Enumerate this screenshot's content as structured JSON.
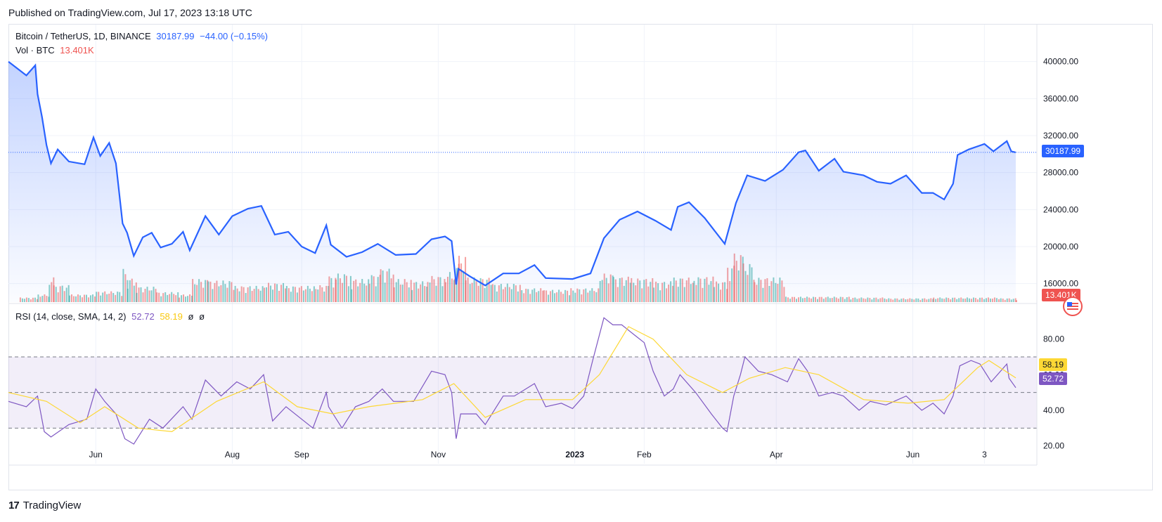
{
  "header": {
    "published": "Published on TradingView.com, Jul 17, 2023 13:18 UTC"
  },
  "legend": {
    "symbol": "Bitcoin / TetherUS, 1D, BINANCE",
    "last": "30187.99",
    "change": "−44.00 (−0.15%)",
    "vol_label": "Vol · BTC",
    "vol_value": "13.401K",
    "rsi_label": "RSI (14, close, SMA, 14, 2)",
    "rsi_value": "52.72",
    "rsi_ma_value": "58.19",
    "rsi_extra1": "ø",
    "rsi_extra2": "ø"
  },
  "badges": {
    "price": "30187.99",
    "volume": "13.401K",
    "rsi_ma": "58.19",
    "rsi": "52.72"
  },
  "footer": {
    "brand": "TradingView",
    "logo": "17"
  },
  "colors": {
    "line": "#2962ff",
    "vol_up": "#26a69a",
    "vol_down": "#ef5350",
    "rsi": "#7e57c2",
    "rsi_ma": "#fdd835"
  },
  "chart_data": {
    "type": "line",
    "price_axis": {
      "ticks": [
        16000,
        20000,
        24000,
        28000,
        32000,
        36000,
        40000
      ],
      "tick_labels": [
        "16000.00",
        "20000.00",
        "24000.00",
        "28000.00",
        "32000.00",
        "36000.00",
        "40000.00"
      ],
      "range": [
        14000,
        44000
      ]
    },
    "rsi_axis": {
      "ticks": [
        20,
        40,
        60,
        80
      ],
      "tick_labels": [
        "20.00",
        "40.00",
        "60.00",
        "80.00"
      ],
      "range": [
        10,
        100
      ],
      "bands": [
        30,
        50,
        70
      ]
    },
    "x_axis_labels": [
      {
        "label": "Jun",
        "date": "2022-06-01"
      },
      {
        "label": "Aug",
        "date": "2022-08-01"
      },
      {
        "label": "Sep",
        "date": "2022-09-01"
      },
      {
        "label": "Nov",
        "date": "2022-11-01"
      },
      {
        "label": "2023",
        "date": "2023-01-01"
      },
      {
        "label": "Feb",
        "date": "2023-02-01"
      },
      {
        "label": "Apr",
        "date": "2023-04-01"
      },
      {
        "label": "Jun",
        "date": "2023-06-01"
      },
      {
        "label": "3",
        "date": "2023-07-03"
      }
    ],
    "x_range": [
      "2022-04-23",
      "2023-07-17"
    ],
    "price_series": [
      [
        "2022-04-23",
        40000
      ],
      [
        "2022-05-01",
        38500
      ],
      [
        "2022-05-05",
        39600
      ],
      [
        "2022-05-06",
        36500
      ],
      [
        "2022-05-08",
        34000
      ],
      [
        "2022-05-10",
        31000
      ],
      [
        "2022-05-12",
        29000
      ],
      [
        "2022-05-15",
        30500
      ],
      [
        "2022-05-20",
        29200
      ],
      [
        "2022-05-27",
        28900
      ],
      [
        "2022-05-31",
        31800
      ],
      [
        "2022-06-03",
        29800
      ],
      [
        "2022-06-07",
        31200
      ],
      [
        "2022-06-10",
        29000
      ],
      [
        "2022-06-13",
        22500
      ],
      [
        "2022-06-15",
        21500
      ],
      [
        "2022-06-18",
        19000
      ],
      [
        "2022-06-22",
        21000
      ],
      [
        "2022-06-26",
        21500
      ],
      [
        "2022-06-30",
        19900
      ],
      [
        "2022-07-05",
        20300
      ],
      [
        "2022-07-10",
        21600
      ],
      [
        "2022-07-13",
        19600
      ],
      [
        "2022-07-20",
        23300
      ],
      [
        "2022-07-26",
        21300
      ],
      [
        "2022-08-01",
        23300
      ],
      [
        "2022-08-08",
        24100
      ],
      [
        "2022-08-14",
        24400
      ],
      [
        "2022-08-20",
        21300
      ],
      [
        "2022-08-26",
        21600
      ],
      [
        "2022-09-01",
        20000
      ],
      [
        "2022-09-07",
        19300
      ],
      [
        "2022-09-12",
        22300
      ],
      [
        "2022-09-14",
        20200
      ],
      [
        "2022-09-21",
        18900
      ],
      [
        "2022-09-28",
        19400
      ],
      [
        "2022-10-05",
        20300
      ],
      [
        "2022-10-13",
        19100
      ],
      [
        "2022-10-22",
        19200
      ],
      [
        "2022-10-29",
        20800
      ],
      [
        "2022-11-04",
        21100
      ],
      [
        "2022-11-07",
        20600
      ],
      [
        "2022-11-09",
        15900
      ],
      [
        "2022-11-10",
        17600
      ],
      [
        "2022-11-15",
        16800
      ],
      [
        "2022-11-22",
        15800
      ],
      [
        "2022-11-30",
        17100
      ],
      [
        "2022-12-07",
        17100
      ],
      [
        "2022-12-14",
        18000
      ],
      [
        "2022-12-19",
        16600
      ],
      [
        "2022-12-31",
        16500
      ],
      [
        "2023-01-08",
        17100
      ],
      [
        "2023-01-14",
        20900
      ],
      [
        "2023-01-21",
        22900
      ],
      [
        "2023-01-29",
        23800
      ],
      [
        "2023-02-06",
        22800
      ],
      [
        "2023-02-13",
        21800
      ],
      [
        "2023-02-16",
        24300
      ],
      [
        "2023-02-21",
        24800
      ],
      [
        "2023-02-28",
        23100
      ],
      [
        "2023-03-09",
        20300
      ],
      [
        "2023-03-14",
        24700
      ],
      [
        "2023-03-19",
        27700
      ],
      [
        "2023-03-27",
        27100
      ],
      [
        "2023-04-04",
        28300
      ],
      [
        "2023-04-11",
        30200
      ],
      [
        "2023-04-14",
        30400
      ],
      [
        "2023-04-20",
        28200
      ],
      [
        "2023-04-27",
        29500
      ],
      [
        "2023-05-01",
        28100
      ],
      [
        "2023-05-10",
        27700
      ],
      [
        "2023-05-16",
        27000
      ],
      [
        "2023-05-22",
        26800
      ],
      [
        "2023-05-29",
        27700
      ],
      [
        "2023-06-05",
        25800
      ],
      [
        "2023-06-10",
        25800
      ],
      [
        "2023-06-15",
        25100
      ],
      [
        "2023-06-19",
        26800
      ],
      [
        "2023-06-21",
        29900
      ],
      [
        "2023-06-26",
        30500
      ],
      [
        "2023-07-03",
        31100
      ],
      [
        "2023-07-07",
        30300
      ],
      [
        "2023-07-13",
        31400
      ],
      [
        "2023-07-15",
        30300
      ],
      [
        "2023-07-17",
        30187.99
      ]
    ],
    "volume_series": [
      [
        "2022-04-28",
        0.6
      ],
      [
        "2022-05-06",
        1.0
      ],
      [
        "2022-05-11",
        3.2
      ],
      [
        "2022-05-13",
        2.2
      ],
      [
        "2022-05-20",
        1.0
      ],
      [
        "2022-06-01",
        1.4
      ],
      [
        "2022-06-13",
        4.3
      ],
      [
        "2022-06-15",
        3.1
      ],
      [
        "2022-06-19",
        2.0
      ],
      [
        "2022-06-28",
        1.3
      ],
      [
        "2022-07-08",
        1.0
      ],
      [
        "2022-07-14",
        3.0
      ],
      [
        "2022-07-21",
        2.8
      ],
      [
        "2022-08-02",
        2.1
      ],
      [
        "2022-08-15",
        2.5
      ],
      [
        "2022-08-25",
        2.1
      ],
      [
        "2022-09-07",
        2.2
      ],
      [
        "2022-09-13",
        3.4
      ],
      [
        "2022-09-16",
        3.7
      ],
      [
        "2022-09-23",
        3.0
      ],
      [
        "2022-10-01",
        3.6
      ],
      [
        "2022-10-06",
        4.4
      ],
      [
        "2022-10-12",
        3.0
      ],
      [
        "2022-10-20",
        2.7
      ],
      [
        "2022-10-27",
        3.4
      ],
      [
        "2022-11-04",
        3.9
      ],
      [
        "2022-11-08",
        5.0
      ],
      [
        "2022-11-10",
        6.0
      ],
      [
        "2022-11-13",
        3.2
      ],
      [
        "2022-11-25",
        2.4
      ],
      [
        "2022-12-08",
        1.8
      ],
      [
        "2022-12-18",
        1.6
      ],
      [
        "2022-12-30",
        1.8
      ],
      [
        "2023-01-12",
        3.7
      ],
      [
        "2023-01-18",
        3.3
      ],
      [
        "2023-01-26",
        3.1
      ],
      [
        "2023-02-05",
        2.7
      ],
      [
        "2023-02-14",
        3.2
      ],
      [
        "2023-02-23",
        3.3
      ],
      [
        "2023-03-04",
        2.7
      ],
      [
        "2023-03-10",
        4.8
      ],
      [
        "2023-03-13",
        6.3
      ],
      [
        "2023-03-17",
        5.0
      ],
      [
        "2023-03-22",
        3.2
      ],
      [
        "2023-04-05",
        0.7
      ],
      [
        "2023-04-20",
        0.7
      ],
      [
        "2023-05-04",
        0.6
      ],
      [
        "2023-05-20",
        0.5
      ],
      [
        "2023-06-10",
        0.6
      ],
      [
        "2023-06-25",
        0.6
      ],
      [
        "2023-07-10",
        0.5
      ],
      [
        "2023-07-17",
        0.3
      ]
    ],
    "rsi_series": [
      [
        "2022-04-23",
        45
      ],
      [
        "2022-05-01",
        42
      ],
      [
        "2022-05-06",
        48
      ],
      [
        "2022-05-09",
        28
      ],
      [
        "2022-05-12",
        25
      ],
      [
        "2022-05-20",
        32
      ],
      [
        "2022-05-28",
        35
      ],
      [
        "2022-06-01",
        52
      ],
      [
        "2022-06-05",
        45
      ],
      [
        "2022-06-10",
        38
      ],
      [
        "2022-06-14",
        24
      ],
      [
        "2022-06-18",
        21
      ],
      [
        "2022-06-25",
        35
      ],
      [
        "2022-07-01",
        30
      ],
      [
        "2022-07-10",
        42
      ],
      [
        "2022-07-14",
        35
      ],
      [
        "2022-07-20",
        57
      ],
      [
        "2022-07-27",
        48
      ],
      [
        "2022-08-03",
        56
      ],
      [
        "2022-08-09",
        52
      ],
      [
        "2022-08-15",
        60
      ],
      [
        "2022-08-19",
        34
      ],
      [
        "2022-08-25",
        42
      ],
      [
        "2022-09-01",
        35
      ],
      [
        "2022-09-06",
        30
      ],
      [
        "2022-09-12",
        50
      ],
      [
        "2022-09-13",
        42
      ],
      [
        "2022-09-19",
        30
      ],
      [
        "2022-09-25",
        42
      ],
      [
        "2022-10-01",
        45
      ],
      [
        "2022-10-07",
        52
      ],
      [
        "2022-10-12",
        45
      ],
      [
        "2022-10-21",
        45
      ],
      [
        "2022-10-29",
        62
      ],
      [
        "2022-11-04",
        60
      ],
      [
        "2022-11-07",
        50
      ],
      [
        "2022-11-09",
        24
      ],
      [
        "2022-11-11",
        38
      ],
      [
        "2022-11-18",
        38
      ],
      [
        "2022-11-22",
        32
      ],
      [
        "2022-11-30",
        48
      ],
      [
        "2022-12-05",
        48
      ],
      [
        "2022-12-14",
        55
      ],
      [
        "2022-12-19",
        42
      ],
      [
        "2022-12-26",
        44
      ],
      [
        "2022-12-31",
        41
      ],
      [
        "2023-01-05",
        48
      ],
      [
        "2023-01-09",
        68
      ],
      [
        "2023-01-14",
        92
      ],
      [
        "2023-01-18",
        88
      ],
      [
        "2023-01-22",
        88
      ],
      [
        "2023-01-28",
        82
      ],
      [
        "2023-02-01",
        78
      ],
      [
        "2023-02-05",
        62
      ],
      [
        "2023-02-10",
        48
      ],
      [
        "2023-02-14",
        52
      ],
      [
        "2023-02-17",
        60
      ],
      [
        "2023-02-24",
        50
      ],
      [
        "2023-03-03",
        38
      ],
      [
        "2023-03-08",
        30
      ],
      [
        "2023-03-10",
        28
      ],
      [
        "2023-03-13",
        48
      ],
      [
        "2023-03-16",
        60
      ],
      [
        "2023-03-18",
        70
      ],
      [
        "2023-03-24",
        62
      ],
      [
        "2023-03-30",
        60
      ],
      [
        "2023-04-06",
        56
      ],
      [
        "2023-04-11",
        69
      ],
      [
        "2023-04-15",
        62
      ],
      [
        "2023-04-20",
        48
      ],
      [
        "2023-04-26",
        50
      ],
      [
        "2023-05-01",
        48
      ],
      [
        "2023-05-08",
        40
      ],
      [
        "2023-05-13",
        45
      ],
      [
        "2023-05-20",
        43
      ],
      [
        "2023-05-29",
        48
      ],
      [
        "2023-06-05",
        40
      ],
      [
        "2023-06-10",
        44
      ],
      [
        "2023-06-15",
        38
      ],
      [
        "2023-06-19",
        48
      ],
      [
        "2023-06-22",
        65
      ],
      [
        "2023-06-27",
        68
      ],
      [
        "2023-07-01",
        66
      ],
      [
        "2023-07-06",
        56
      ],
      [
        "2023-07-13",
        66
      ],
      [
        "2023-07-14",
        58
      ],
      [
        "2023-07-17",
        52.72
      ]
    ],
    "rsi_ma_series": [
      [
        "2022-04-23",
        50
      ],
      [
        "2022-05-10",
        45
      ],
      [
        "2022-05-25",
        33
      ],
      [
        "2022-06-05",
        42
      ],
      [
        "2022-06-20",
        30
      ],
      [
        "2022-07-05",
        28
      ],
      [
        "2022-07-25",
        45
      ],
      [
        "2022-08-15",
        56
      ],
      [
        "2022-08-30",
        42
      ],
      [
        "2022-09-15",
        38
      ],
      [
        "2022-10-01",
        42
      ],
      [
        "2022-10-25",
        46
      ],
      [
        "2022-11-08",
        55
      ],
      [
        "2022-11-22",
        36
      ],
      [
        "2022-12-10",
        46
      ],
      [
        "2022-12-31",
        46
      ],
      [
        "2023-01-12",
        60
      ],
      [
        "2023-01-25",
        87
      ],
      [
        "2023-02-05",
        80
      ],
      [
        "2023-02-20",
        60
      ],
      [
        "2023-03-08",
        50
      ],
      [
        "2023-03-20",
        58
      ],
      [
        "2023-04-05",
        64
      ],
      [
        "2023-04-20",
        60
      ],
      [
        "2023-05-10",
        46
      ],
      [
        "2023-05-30",
        44
      ],
      [
        "2023-06-15",
        46
      ],
      [
        "2023-06-30",
        64
      ],
      [
        "2023-07-05",
        68
      ],
      [
        "2023-07-17",
        58.19
      ]
    ]
  }
}
